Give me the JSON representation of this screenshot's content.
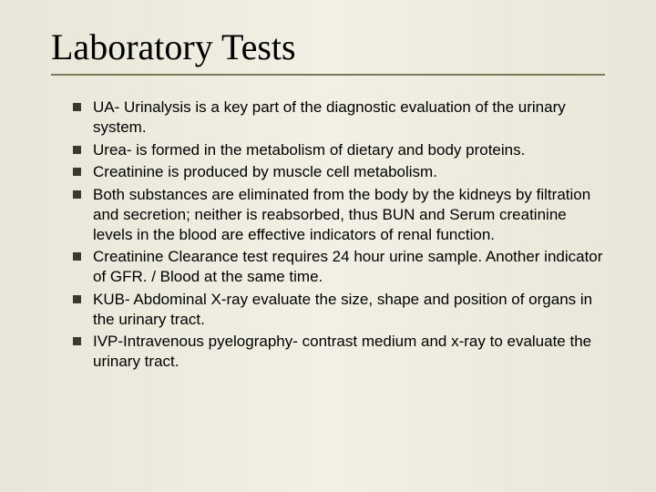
{
  "slide": {
    "title": "Laboratory Tests",
    "title_font_family": "Times New Roman",
    "title_font_size_pt": 30,
    "title_color": "#000000",
    "underline_color": "#7a7a5a",
    "background_gradient": [
      "#e8e6d8",
      "#f2f0e4",
      "#e8e6d8"
    ],
    "body_font_family": "Arial",
    "body_font_size_pt": 13,
    "body_text_color": "#000000",
    "bullet_marker_color": "#3a3a2a",
    "bullet_marker_shape": "square",
    "bullets": [
      "UA- Urinalysis is a key part of the diagnostic evaluation of the urinary system.",
      "Urea- is formed in the metabolism of dietary and body proteins.",
      "Creatinine is produced by muscle cell metabolism.",
      "Both substances are eliminated from the body by the kidneys by filtration and secretion; neither is reabsorbed, thus BUN and Serum creatinine levels in the blood are effective indicators of renal function.",
      "Creatinine Clearance test requires 24 hour urine sample. Another indicator of GFR. / Blood at the same time.",
      "KUB- Abdominal X-ray evaluate the size, shape and position of organs in the urinary tract.",
      "IVP-Intravenous pyelography- contrast medium and x-ray to evaluate the urinary tract."
    ]
  }
}
